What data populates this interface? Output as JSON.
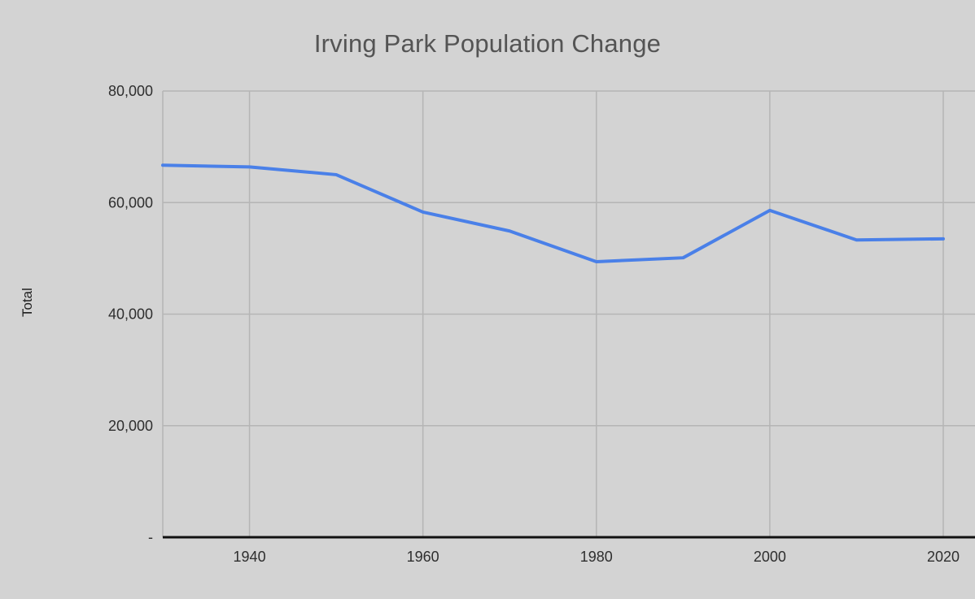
{
  "chart": {
    "title": "Irving Park Population Change",
    "y_axis_title": "Total"
  },
  "chart_data": {
    "type": "line",
    "title": "Irving Park Population Change",
    "xlabel": "",
    "ylabel": "Total",
    "x": [
      1930,
      1940,
      1950,
      1960,
      1970,
      1980,
      1990,
      2000,
      2010,
      2020
    ],
    "series": [
      {
        "name": "Total",
        "values": [
          66700,
          66400,
          65000,
          58300,
          54900,
          49400,
          50100,
          58600,
          53300,
          53500
        ]
      }
    ],
    "xlim": [
      1930,
      2020
    ],
    "ylim": [
      0,
      80000
    ],
    "xtick_values": [
      1940,
      1960,
      1980,
      2000,
      2020
    ],
    "xtick_labels": [
      "1940",
      "1960",
      "1980",
      "2000",
      "2020"
    ],
    "ytick_values": [
      0,
      20000,
      40000,
      60000,
      80000
    ],
    "ytick_labels": [
      "-",
      "20,000",
      "40,000",
      "60,000",
      "80,000"
    ],
    "grid": true,
    "legend": "none",
    "line_color": "#4a80e8",
    "background_color": "#d3d3d3",
    "gridline_color": "#b5b5b5",
    "axis_color": "#111111",
    "title_color": "#545454",
    "text_color": "#2e2e2e"
  }
}
